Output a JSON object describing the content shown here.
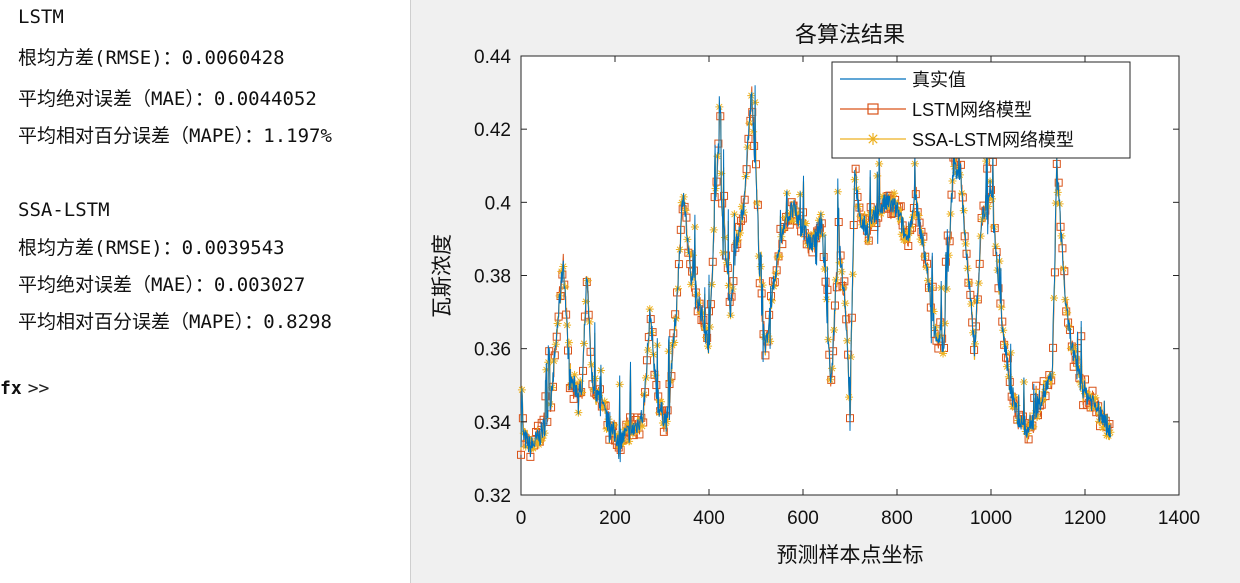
{
  "console": {
    "lines": [
      "LSTM",
      "根均方差(RMSE)：0.0060428",
      "平均绝对误差（MAE）：0.0044052",
      "平均相对百分误差（MAPE）：1.197%",
      "",
      "SSA-LSTM",
      "根均方差(RMSE)：0.0039543",
      "平均绝对误差（MAE）：0.003027",
      "平均相对百分误差（MAPE）：0.8298"
    ],
    "prompt": ">>",
    "prompt_prefix": "fx"
  },
  "chart_data": {
    "type": "line",
    "title": "各算法结果",
    "xlabel": "预测样本点坐标",
    "ylabel": "瓦斯浓度",
    "xlim": [
      0,
      1400
    ],
    "ylim": [
      0.32,
      0.44
    ],
    "xticks": [
      0,
      200,
      400,
      600,
      800,
      1000,
      1200,
      1400
    ],
    "yticks": [
      0.32,
      0.34,
      0.36,
      0.38,
      0.4,
      0.42,
      0.44
    ],
    "grid": false,
    "legend_position": "top-right",
    "n_points": 1256,
    "series": [
      {
        "name": "真实值",
        "color": "#0072BD",
        "marker": "none"
      },
      {
        "name": "LSTM网络模型",
        "color": "#D95319",
        "marker": "square"
      },
      {
        "name": "SSA-LSTM网络模型",
        "color": "#EDB120",
        "marker": "asterisk"
      }
    ],
    "envelope": [
      [
        0,
        0.337
      ],
      [
        20,
        0.333
      ],
      [
        40,
        0.336
      ],
      [
        60,
        0.342
      ],
      [
        70,
        0.355
      ],
      [
        80,
        0.37
      ],
      [
        90,
        0.384
      ],
      [
        100,
        0.36
      ],
      [
        110,
        0.35
      ],
      [
        130,
        0.348
      ],
      [
        140,
        0.38
      ],
      [
        150,
        0.352
      ],
      [
        170,
        0.345
      ],
      [
        190,
        0.338
      ],
      [
        210,
        0.335
      ],
      [
        240,
        0.338
      ],
      [
        260,
        0.342
      ],
      [
        275,
        0.37
      ],
      [
        290,
        0.345
      ],
      [
        310,
        0.34
      ],
      [
        330,
        0.37
      ],
      [
        345,
        0.404
      ],
      [
        360,
        0.38
      ],
      [
        380,
        0.372
      ],
      [
        400,
        0.36
      ],
      [
        410,
        0.39
      ],
      [
        420,
        0.418
      ],
      [
        430,
        0.395
      ],
      [
        445,
        0.37
      ],
      [
        460,
        0.39
      ],
      [
        475,
        0.4
      ],
      [
        490,
        0.43
      ],
      [
        500,
        0.41
      ],
      [
        510,
        0.37
      ],
      [
        520,
        0.36
      ],
      [
        540,
        0.38
      ],
      [
        560,
        0.395
      ],
      [
        580,
        0.398
      ],
      [
        600,
        0.392
      ],
      [
        620,
        0.388
      ],
      [
        640,
        0.395
      ],
      [
        650,
        0.37
      ],
      [
        660,
        0.35
      ],
      [
        675,
        0.39
      ],
      [
        690,
        0.372
      ],
      [
        700,
        0.345
      ],
      [
        710,
        0.41
      ],
      [
        720,
        0.395
      ],
      [
        740,
        0.392
      ],
      [
        760,
        0.398
      ],
      [
        780,
        0.4
      ],
      [
        800,
        0.398
      ],
      [
        820,
        0.39
      ],
      [
        840,
        0.4
      ],
      [
        860,
        0.385
      ],
      [
        880,
        0.365
      ],
      [
        900,
        0.36
      ],
      [
        920,
        0.41
      ],
      [
        935,
        0.408
      ],
      [
        950,
        0.382
      ],
      [
        965,
        0.36
      ],
      [
        980,
        0.395
      ],
      [
        1000,
        0.405
      ],
      [
        1020,
        0.37
      ],
      [
        1040,
        0.35
      ],
      [
        1060,
        0.34
      ],
      [
        1080,
        0.338
      ],
      [
        1100,
        0.345
      ],
      [
        1130,
        0.352
      ],
      [
        1140,
        0.41
      ],
      [
        1160,
        0.37
      ],
      [
        1180,
        0.355
      ],
      [
        1200,
        0.348
      ],
      [
        1220,
        0.345
      ],
      [
        1240,
        0.34
      ],
      [
        1256,
        0.338
      ]
    ]
  }
}
